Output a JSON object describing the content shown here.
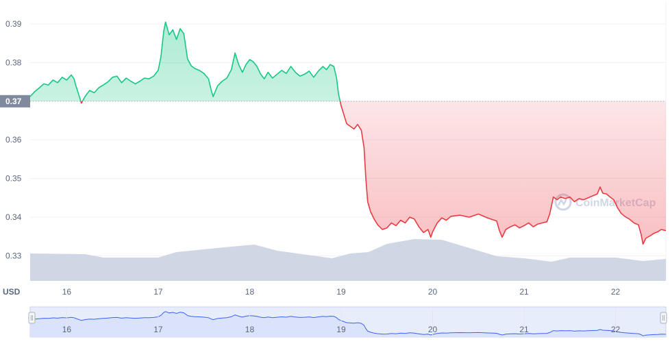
{
  "chart_data": {
    "type": "area",
    "currency_label": "USD",
    "watermark": "CoinMarketCap",
    "baseline_value": 0.37,
    "baseline_label": "0.37",
    "y_ticks": [
      "0.39",
      "0.38",
      "0.37",
      "0.36",
      "0.35",
      "0.34",
      "0.33"
    ],
    "ylim": [
      0.3235,
      0.3955
    ],
    "x_ticks": [
      "16",
      "17",
      "18",
      "19",
      "20",
      "21",
      "22"
    ],
    "xlim": [
      15.6,
      22.55
    ],
    "grid": true,
    "series": [
      {
        "points": [
          [
            15.6,
            0.3712
          ],
          [
            15.65,
            0.3725
          ],
          [
            15.7,
            0.3735
          ],
          [
            15.75,
            0.3745
          ],
          [
            15.8,
            0.3742
          ],
          [
            15.85,
            0.3755
          ],
          [
            15.9,
            0.3748
          ],
          [
            15.95,
            0.3762
          ],
          [
            16.0,
            0.3755
          ],
          [
            16.05,
            0.3768
          ],
          [
            16.08,
            0.3758
          ],
          [
            16.1,
            0.374
          ],
          [
            16.13,
            0.3718
          ],
          [
            16.16,
            0.3695
          ],
          [
            16.2,
            0.3712
          ],
          [
            16.25,
            0.3728
          ],
          [
            16.3,
            0.3722
          ],
          [
            16.35,
            0.3735
          ],
          [
            16.4,
            0.3742
          ],
          [
            16.45,
            0.375
          ],
          [
            16.5,
            0.3762
          ],
          [
            16.55,
            0.3765
          ],
          [
            16.6,
            0.3748
          ],
          [
            16.65,
            0.376
          ],
          [
            16.7,
            0.3752
          ],
          [
            16.75,
            0.3745
          ],
          [
            16.8,
            0.3752
          ],
          [
            16.85,
            0.376
          ],
          [
            16.9,
            0.3758
          ],
          [
            16.95,
            0.3765
          ],
          [
            17.0,
            0.378
          ],
          [
            17.03,
            0.3815
          ],
          [
            17.06,
            0.388
          ],
          [
            17.08,
            0.3905
          ],
          [
            17.12,
            0.3872
          ],
          [
            17.16,
            0.3885
          ],
          [
            17.2,
            0.386
          ],
          [
            17.24,
            0.3888
          ],
          [
            17.28,
            0.3875
          ],
          [
            17.32,
            0.381
          ],
          [
            17.36,
            0.3792
          ],
          [
            17.4,
            0.3785
          ],
          [
            17.45,
            0.378
          ],
          [
            17.5,
            0.3772
          ],
          [
            17.55,
            0.3758
          ],
          [
            17.58,
            0.3728
          ],
          [
            17.6,
            0.3712
          ],
          [
            17.65,
            0.374
          ],
          [
            17.7,
            0.3752
          ],
          [
            17.75,
            0.376
          ],
          [
            17.8,
            0.3782
          ],
          [
            17.84,
            0.3825
          ],
          [
            17.88,
            0.3795
          ],
          [
            17.92,
            0.3775
          ],
          [
            17.96,
            0.3795
          ],
          [
            18.0,
            0.3808
          ],
          [
            18.04,
            0.3802
          ],
          [
            18.08,
            0.379
          ],
          [
            18.12,
            0.377
          ],
          [
            18.16,
            0.3758
          ],
          [
            18.2,
            0.3775
          ],
          [
            18.25,
            0.376
          ],
          [
            18.3,
            0.377
          ],
          [
            18.35,
            0.378
          ],
          [
            18.4,
            0.3772
          ],
          [
            18.45,
            0.379
          ],
          [
            18.5,
            0.3775
          ],
          [
            18.55,
            0.3765
          ],
          [
            18.6,
            0.377
          ],
          [
            18.65,
            0.3778
          ],
          [
            18.7,
            0.3762
          ],
          [
            18.75,
            0.3778
          ],
          [
            18.8,
            0.379
          ],
          [
            18.84,
            0.3782
          ],
          [
            18.88,
            0.3795
          ],
          [
            18.92,
            0.379
          ],
          [
            18.95,
            0.376
          ],
          [
            18.97,
            0.372
          ],
          [
            19.0,
            0.3688
          ],
          [
            19.03,
            0.3665
          ],
          [
            19.06,
            0.3642
          ],
          [
            19.1,
            0.3635
          ],
          [
            19.14,
            0.3628
          ],
          [
            19.18,
            0.364
          ],
          [
            19.22,
            0.3625
          ],
          [
            19.25,
            0.358
          ],
          [
            19.27,
            0.35
          ],
          [
            19.29,
            0.344
          ],
          [
            19.32,
            0.3415
          ],
          [
            19.36,
            0.3395
          ],
          [
            19.4,
            0.338
          ],
          [
            19.45,
            0.3368
          ],
          [
            19.5,
            0.3372
          ],
          [
            19.55,
            0.3385
          ],
          [
            19.6,
            0.3378
          ],
          [
            19.65,
            0.3392
          ],
          [
            19.7,
            0.3385
          ],
          [
            19.75,
            0.34
          ],
          [
            19.8,
            0.3395
          ],
          [
            19.85,
            0.3375
          ],
          [
            19.9,
            0.336
          ],
          [
            19.95,
            0.3368
          ],
          [
            19.98,
            0.3348
          ],
          [
            20.0,
            0.3362
          ],
          [
            20.05,
            0.3385
          ],
          [
            20.1,
            0.3398
          ],
          [
            20.15,
            0.3392
          ],
          [
            20.2,
            0.3402
          ],
          [
            20.3,
            0.3405
          ],
          [
            20.4,
            0.34
          ],
          [
            20.5,
            0.3408
          ],
          [
            20.6,
            0.3398
          ],
          [
            20.7,
            0.339
          ],
          [
            20.73,
            0.3365
          ],
          [
            20.76,
            0.3348
          ],
          [
            20.8,
            0.3368
          ],
          [
            20.85,
            0.3375
          ],
          [
            20.9,
            0.338
          ],
          [
            20.95,
            0.3372
          ],
          [
            21.0,
            0.3378
          ],
          [
            21.05,
            0.3385
          ],
          [
            21.1,
            0.3375
          ],
          [
            21.15,
            0.3382
          ],
          [
            21.2,
            0.3385
          ],
          [
            21.25,
            0.3388
          ],
          [
            21.28,
            0.3408
          ],
          [
            21.32,
            0.3452
          ],
          [
            21.36,
            0.3445
          ],
          [
            21.4,
            0.3452
          ],
          [
            21.45,
            0.3448
          ],
          [
            21.5,
            0.3452
          ],
          [
            21.55,
            0.344
          ],
          [
            21.6,
            0.3448
          ],
          [
            21.65,
            0.3445
          ],
          [
            21.7,
            0.345
          ],
          [
            21.75,
            0.3455
          ],
          [
            21.8,
            0.346
          ],
          [
            21.83,
            0.3478
          ],
          [
            21.86,
            0.3462
          ],
          [
            21.9,
            0.346
          ],
          [
            21.94,
            0.3452
          ],
          [
            21.98,
            0.3445
          ],
          [
            22.02,
            0.3425
          ],
          [
            22.06,
            0.341
          ],
          [
            22.1,
            0.3402
          ],
          [
            22.15,
            0.3395
          ],
          [
            22.2,
            0.3385
          ],
          [
            22.25,
            0.338
          ],
          [
            22.28,
            0.3355
          ],
          [
            22.3,
            0.333
          ],
          [
            22.33,
            0.3345
          ],
          [
            22.38,
            0.3352
          ],
          [
            22.42,
            0.3358
          ],
          [
            22.46,
            0.3362
          ],
          [
            22.5,
            0.3368
          ],
          [
            22.55,
            0.3365
          ]
        ]
      }
    ],
    "colors": {
      "up_line": "#16c784",
      "down_line": "#ea3943",
      "up_fill": "#16c784",
      "down_fill": "#ea3943",
      "volume": "#cfd6e4",
      "navigator_line": "#3861fb",
      "navigator_fill": "#e8edfc",
      "grid": "#eef0f4",
      "axis_text": "#58667e",
      "baseline_label_bg": "#808a9d"
    }
  }
}
